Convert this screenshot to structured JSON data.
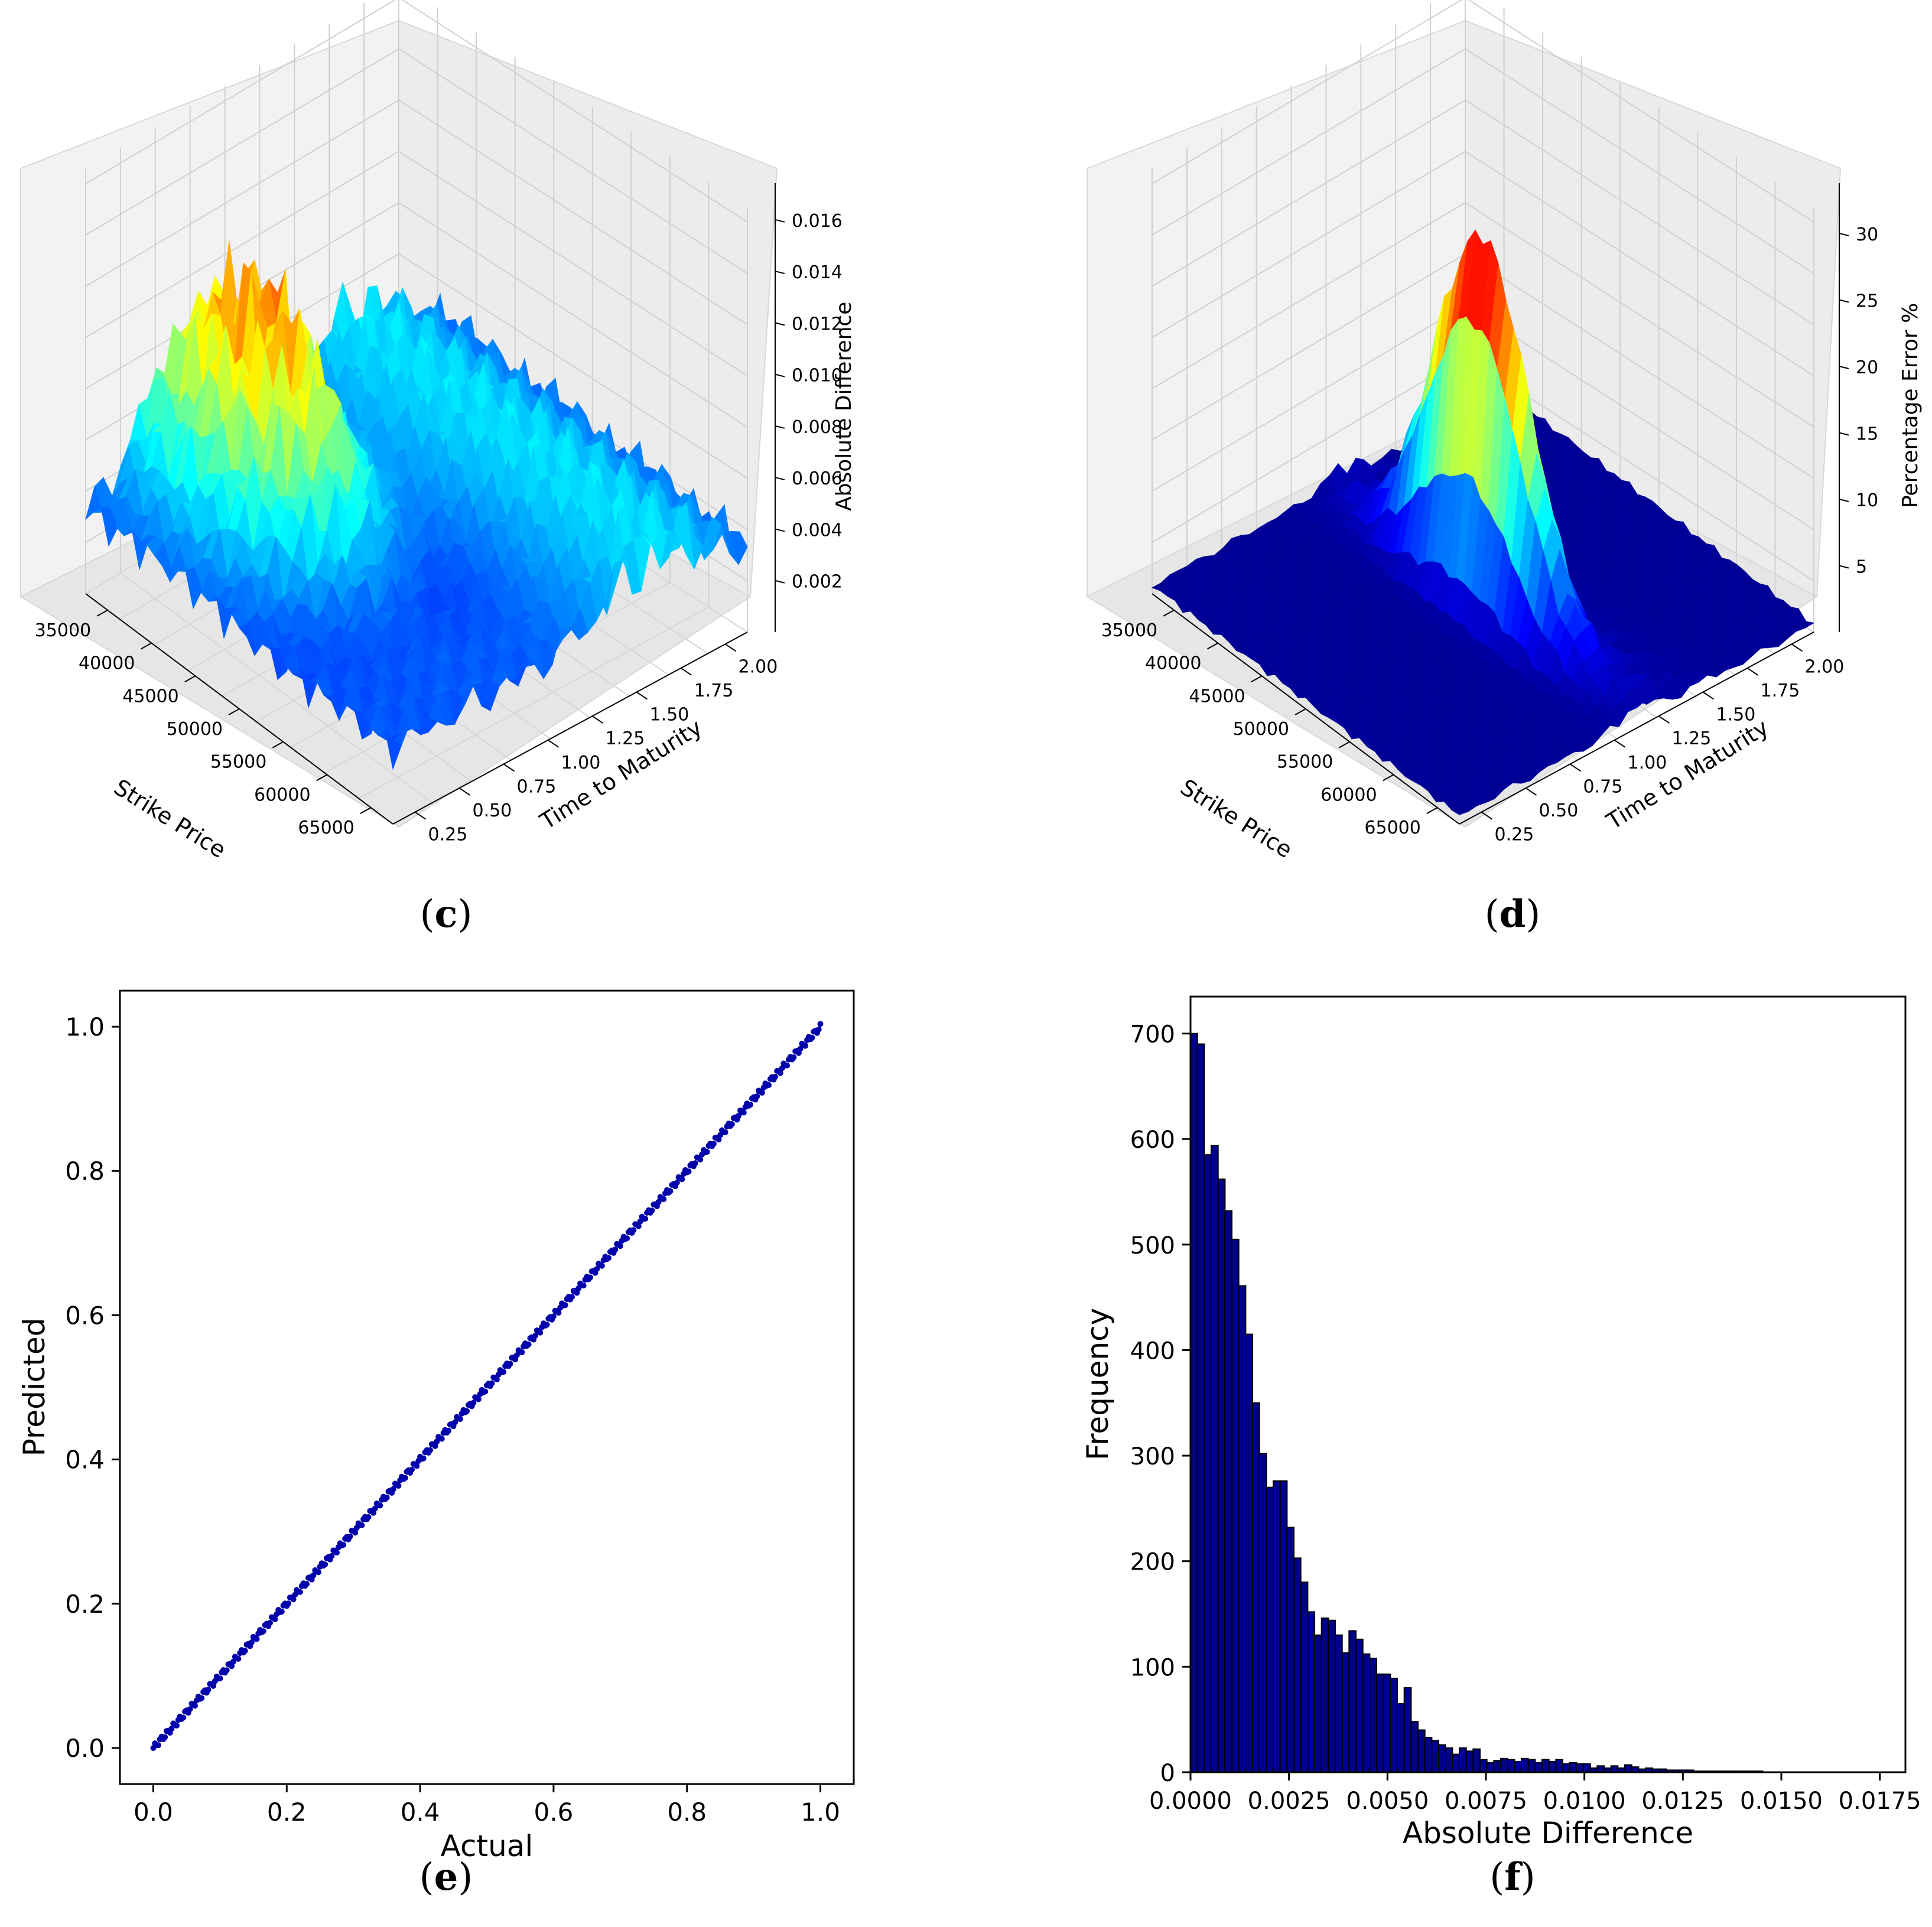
{
  "chart_data": [
    {
      "id": "c",
      "type": "surface3d",
      "caption_letter": "c",
      "xlabel": "Strike Price",
      "ylabel": "Time to Maturity",
      "zlabel": "Absolute Difference",
      "x_ticks": [
        "35000",
        "40000",
        "45000",
        "50000",
        "55000",
        "60000",
        "65000"
      ],
      "y_ticks": [
        "0.25",
        "0.50",
        "0.75",
        "1.00",
        "1.25",
        "1.50",
        "1.75",
        "2.00"
      ],
      "z_ticks": [
        "0.002",
        "0.004",
        "0.006",
        "0.008",
        "0.010",
        "0.012",
        "0.014",
        "0.016"
      ],
      "z_max": 0.0165,
      "colormap": "jet"
    },
    {
      "id": "d",
      "type": "surface3d",
      "caption_letter": "d",
      "xlabel": "Strike Price",
      "ylabel": "Time to Maturity",
      "zlabel": "Percentage Error %",
      "x_ticks": [
        "35000",
        "40000",
        "45000",
        "50000",
        "55000",
        "60000",
        "65000"
      ],
      "y_ticks": [
        "0.25",
        "0.50",
        "0.75",
        "1.00",
        "1.25",
        "1.50",
        "1.75",
        "2.00"
      ],
      "z_ticks": [
        "5",
        "10",
        "15",
        "20",
        "25",
        "30"
      ],
      "z_max": 32,
      "colormap": "jet"
    },
    {
      "id": "e",
      "type": "scatter",
      "caption_letter": "e",
      "xlabel": "Actual",
      "ylabel": "Predicted",
      "x_ticks": [
        "0.0",
        "0.2",
        "0.4",
        "0.6",
        "0.8",
        "1.0"
      ],
      "y_ticks": [
        "0.0",
        "0.2",
        "0.4",
        "0.6",
        "0.8",
        "1.0"
      ],
      "xlim": [
        -0.05,
        1.05
      ],
      "ylim": [
        -0.05,
        1.05
      ],
      "series_color": "#0000aa",
      "x_range": [
        0.0,
        1.0
      ],
      "relation": "Predicted ≈ Actual"
    },
    {
      "id": "f",
      "type": "bar",
      "caption_letter": "f",
      "xlabel": "Absolute Difference",
      "ylabel": "Frequency",
      "x_ticks": [
        "0.0000",
        "0.0025",
        "0.0050",
        "0.0075",
        "0.0100",
        "0.0125",
        "0.0150",
        "0.0175"
      ],
      "y_ticks": [
        "0",
        "100",
        "200",
        "300",
        "400",
        "500",
        "600",
        "700"
      ],
      "xlim": [
        0,
        0.01815
      ],
      "ylim": [
        0,
        735
      ],
      "bin_width": 0.000175,
      "bar_color": "#00008b",
      "values": [
        700,
        690,
        585,
        594,
        562,
        532,
        505,
        461,
        415,
        350,
        302,
        270,
        276,
        276,
        232,
        203,
        180,
        152,
        130,
        146,
        144,
        130,
        113,
        134,
        126,
        112,
        108,
        93,
        93,
        89,
        65,
        80,
        48,
        40,
        33,
        30,
        26,
        23,
        17,
        23,
        20,
        22,
        12,
        9,
        11,
        13,
        12,
        10,
        13,
        12,
        9,
        12,
        10,
        12,
        8,
        9,
        8,
        8,
        4,
        6,
        4,
        6,
        4,
        7,
        5,
        3,
        4,
        3,
        3,
        2,
        2,
        2,
        2,
        1,
        1,
        1,
        1,
        1,
        1,
        1,
        1,
        1,
        1
      ]
    }
  ]
}
